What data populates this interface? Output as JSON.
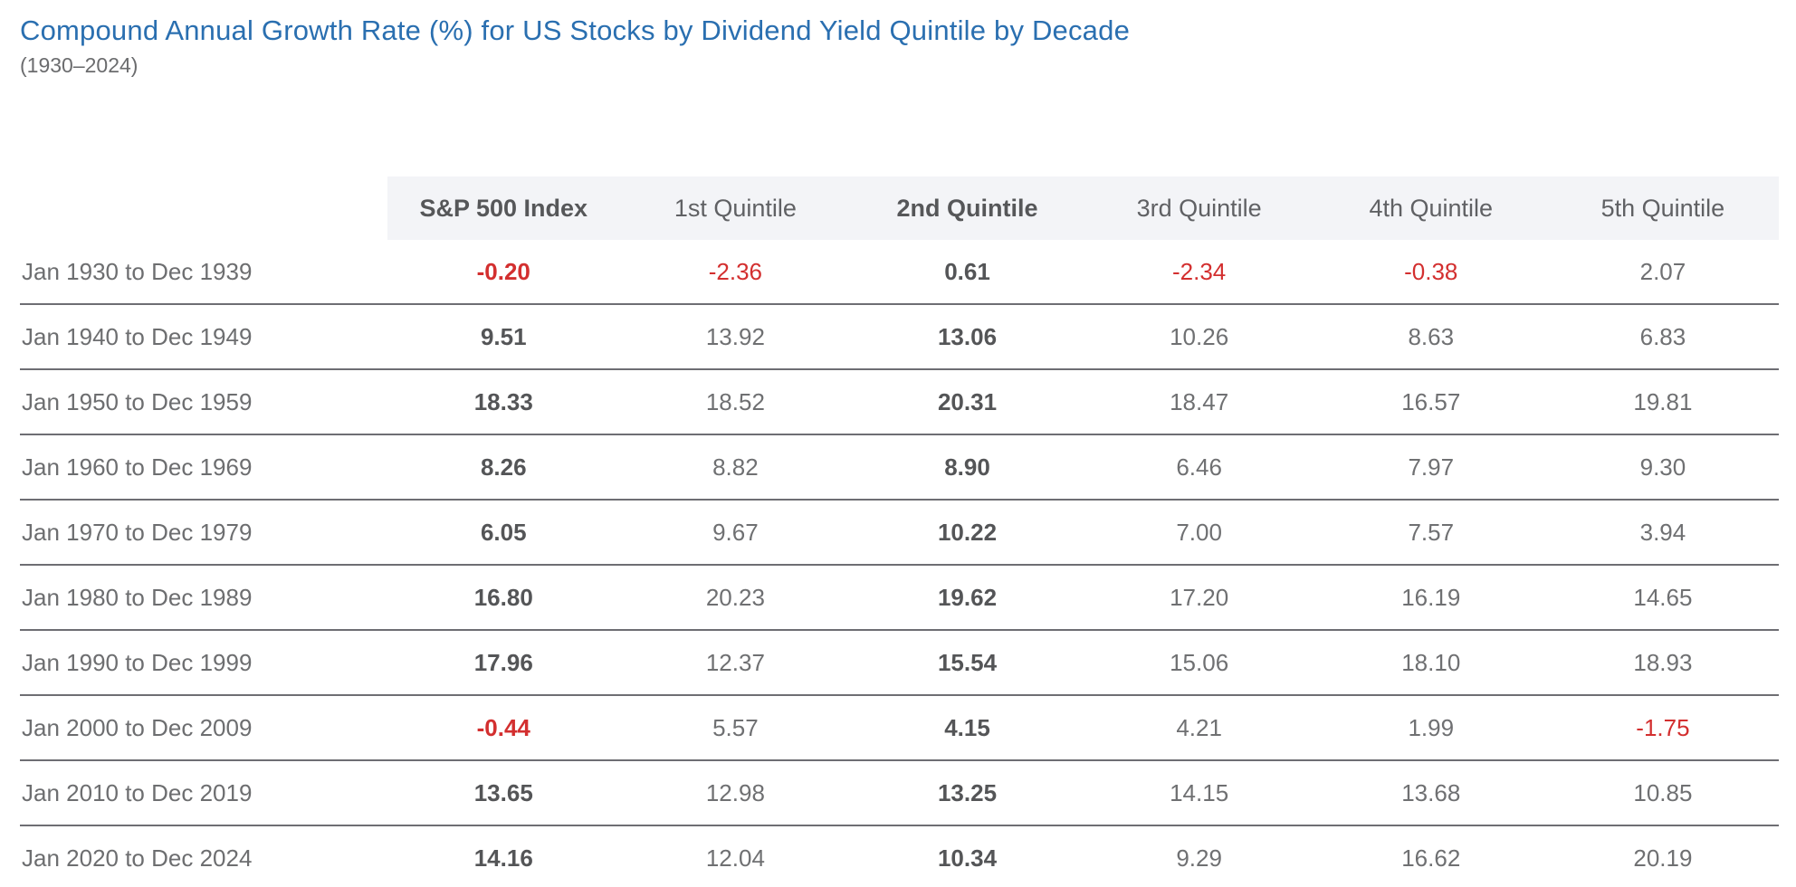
{
  "header": {
    "title": "Compound Annual Growth Rate (%) for US Stocks by Dividend Yield Quintile by Decade",
    "subtitle": "(1930–2024)"
  },
  "colors": {
    "title_blue": "#2a6fb0",
    "negative_red": "#d32f2f",
    "header_background": "#f3f4f7",
    "row_divider": "#6e6e73"
  },
  "chart_data": {
    "type": "table",
    "title": "Compound Annual Growth Rate (%) for US Stocks by Dividend Yield Quintile by Decade",
    "subtitle": "(1930–2024)",
    "columns": [
      {
        "label": "S&P 500 Index",
        "bold": true
      },
      {
        "label": "1st Quintile",
        "bold": false
      },
      {
        "label": "2nd Quintile",
        "bold": true
      },
      {
        "label": "3rd Quintile",
        "bold": false
      },
      {
        "label": "4th Quintile",
        "bold": false
      },
      {
        "label": "5th Quintile",
        "bold": false
      }
    ],
    "rows": [
      {
        "label": "Jan 1930 to Dec 1939",
        "values": [
          "-0.20",
          "-2.36",
          "0.61",
          "-2.34",
          "-0.38",
          "2.07"
        ]
      },
      {
        "label": "Jan 1940 to Dec 1949",
        "values": [
          "9.51",
          "13.92",
          "13.06",
          "10.26",
          "8.63",
          "6.83"
        ]
      },
      {
        "label": "Jan 1950 to Dec 1959",
        "values": [
          "18.33",
          "18.52",
          "20.31",
          "18.47",
          "16.57",
          "19.81"
        ]
      },
      {
        "label": "Jan 1960 to Dec 1969",
        "values": [
          "8.26",
          "8.82",
          "8.90",
          "6.46",
          "7.97",
          "9.30"
        ]
      },
      {
        "label": "Jan 1970 to Dec 1979",
        "values": [
          "6.05",
          "9.67",
          "10.22",
          "7.00",
          "7.57",
          "3.94"
        ]
      },
      {
        "label": "Jan 1980 to Dec 1989",
        "values": [
          "16.80",
          "20.23",
          "19.62",
          "17.20",
          "16.19",
          "14.65"
        ]
      },
      {
        "label": "Jan 1990 to Dec 1999",
        "values": [
          "17.96",
          "12.37",
          "15.54",
          "15.06",
          "18.10",
          "18.93"
        ]
      },
      {
        "label": "Jan 2000 to Dec 2009",
        "values": [
          "-0.44",
          "5.57",
          "4.15",
          "4.21",
          "1.99",
          "-1.75"
        ]
      },
      {
        "label": "Jan 2010 to Dec 2019",
        "values": [
          "13.65",
          "12.98",
          "13.25",
          "14.15",
          "13.68",
          "10.85"
        ]
      },
      {
        "label": "Jan 2020 to Dec 2024",
        "values": [
          "14.16",
          "12.04",
          "10.34",
          "9.29",
          "16.62",
          "20.19"
        ]
      }
    ]
  }
}
